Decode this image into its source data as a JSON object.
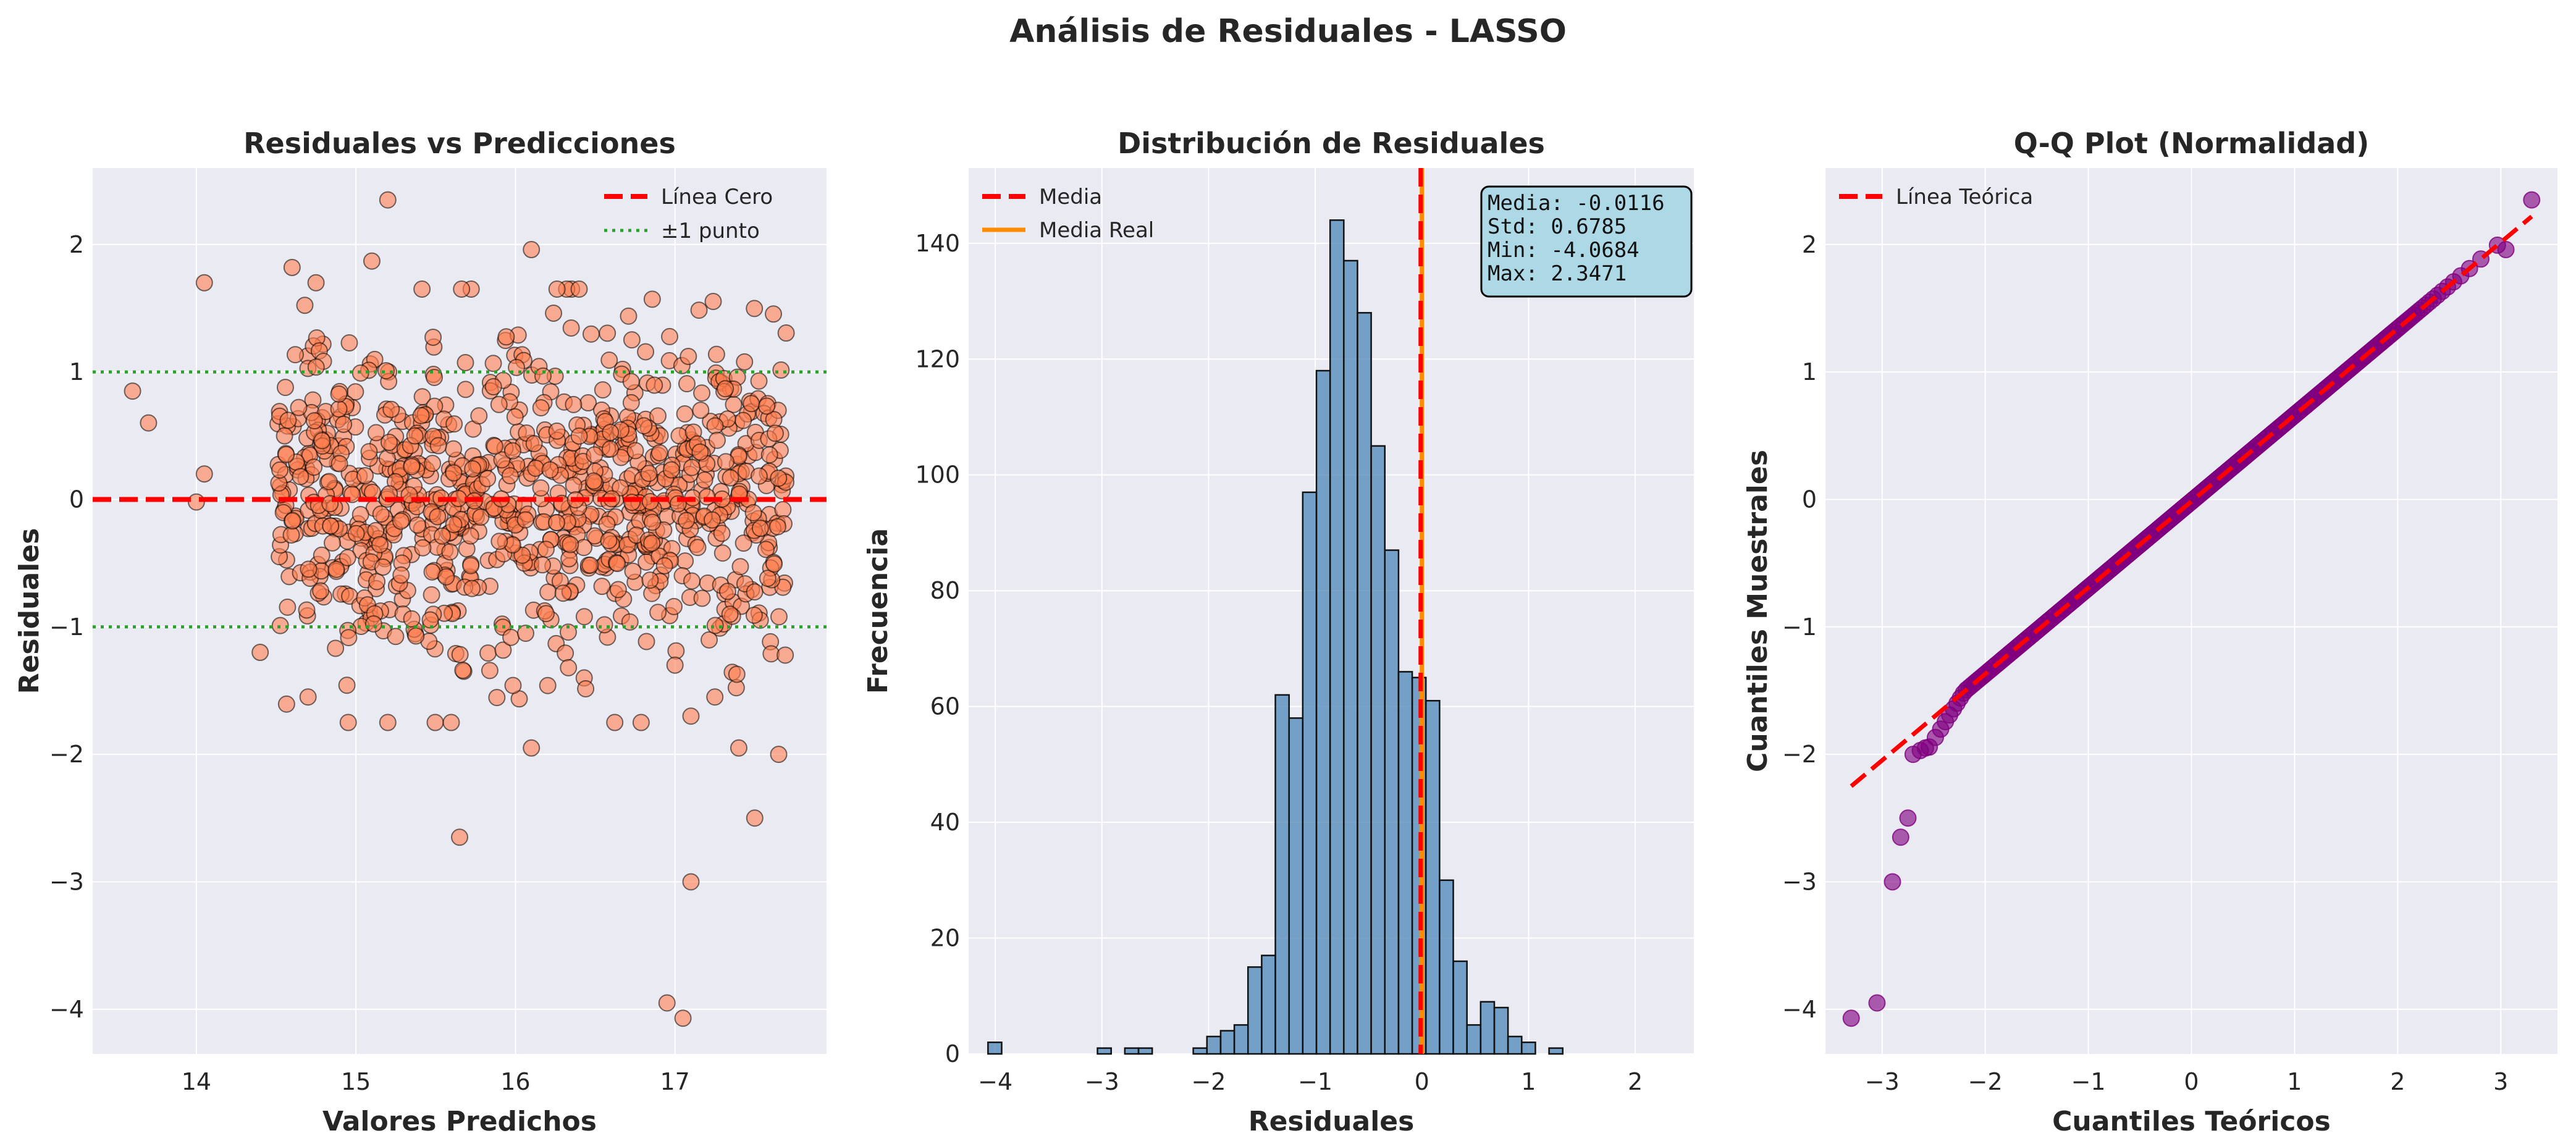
{
  "figure": {
    "title": "Análisis de Residuales - LASSO",
    "colors": {
      "plot_bg": "#eaeaf2",
      "grid": "#ffffff"
    }
  },
  "chart_data": [
    {
      "type": "scatter",
      "title": "Residuales vs Predicciones",
      "xlabel": "Valores Predichos",
      "ylabel": "Residuales",
      "xlim": [
        13.35,
        17.95
      ],
      "ylim": [
        -4.35,
        2.6
      ],
      "xticks": [
        14,
        15,
        16,
        17
      ],
      "yticks": [
        -4,
        -3,
        -2,
        -1,
        0,
        1,
        2
      ],
      "grid": true,
      "legend_position": "top-right",
      "reference_lines": [
        {
          "label": "Línea Cero",
          "y": 0,
          "color": "#ff0000",
          "style": "dashed"
        },
        {
          "label": "±1 punto",
          "y": [
            1,
            -1
          ],
          "color": "#2ca02c",
          "style": "dotted"
        }
      ],
      "point_color": "#ff7f50",
      "n_points": 1000,
      "notable_points": [
        {
          "x": 13.6,
          "y": 0.85
        },
        {
          "x": 13.7,
          "y": 0.6
        },
        {
          "x": 14.05,
          "y": 1.7
        },
        {
          "x": 14.0,
          "y": -0.02
        },
        {
          "x": 14.05,
          "y": 0.2
        },
        {
          "x": 15.2,
          "y": 2.35
        },
        {
          "x": 15.1,
          "y": 1.87
        },
        {
          "x": 16.1,
          "y": 1.96
        },
        {
          "x": 15.65,
          "y": -2.65
        },
        {
          "x": 16.1,
          "y": -1.95
        },
        {
          "x": 16.95,
          "y": -3.95
        },
        {
          "x": 17.05,
          "y": -4.07
        },
        {
          "x": 17.1,
          "y": -3.0
        },
        {
          "x": 17.5,
          "y": -2.5
        },
        {
          "x": 17.65,
          "y": -2.0
        },
        {
          "x": 17.4,
          "y": -1.95
        },
        {
          "x": 17.25,
          "y": -1.55
        },
        {
          "x": 17.1,
          "y": -1.7
        },
        {
          "x": 17.0,
          "y": -1.3
        },
        {
          "x": 14.4,
          "y": -1.2
        },
        {
          "x": 14.7,
          "y": -1.55
        },
        {
          "x": 15.2,
          "y": -1.75
        },
        {
          "x": 14.6,
          "y": 1.82
        },
        {
          "x": 14.75,
          "y": 1.7
        }
      ]
    },
    {
      "type": "bar",
      "subtype": "histogram",
      "title": "Distribución de Residuales",
      "xlabel": "Residuales",
      "ylabel": "Frecuencia",
      "xlim": [
        -4.25,
        2.55
      ],
      "ylim": [
        0,
        153
      ],
      "xticks": [
        -4,
        -3,
        -2,
        -1,
        0,
        1,
        2
      ],
      "yticks": [
        0,
        20,
        40,
        60,
        80,
        100,
        120,
        140
      ],
      "grid": true,
      "legend_position": "top-left",
      "bar_color": "#4682b4",
      "bin_start": -4.0684,
      "bin_width": 0.12831,
      "counts": [
        2,
        0,
        0,
        0,
        0,
        0,
        0,
        0,
        1,
        0,
        1,
        1,
        0,
        0,
        0,
        1,
        3,
        4,
        5,
        15,
        17,
        62,
        58,
        97,
        118,
        144,
        137,
        128,
        105,
        87,
        66,
        65,
        61,
        30,
        16,
        5,
        9,
        8,
        3,
        2,
        0,
        1
      ],
      "mean_lines": [
        {
          "label": "Media",
          "x": -0.0116,
          "color": "#ff0000",
          "style": "dashed"
        },
        {
          "label": "Media Real",
          "x": 0.0,
          "color": "#ff8c00",
          "style": "solid"
        }
      ],
      "stats_text": [
        "Media: -0.0116",
        "Std: 0.6785",
        "Min: -4.0684",
        "Max: 2.3471"
      ],
      "stats_box_color": "#add8e6"
    },
    {
      "type": "scatter",
      "title": "Q-Q Plot (Normalidad)",
      "xlabel": "Cuantiles Teóricos",
      "ylabel": "Cuantiles Muestrales",
      "xlim": [
        -3.55,
        3.55
      ],
      "ylim": [
        -4.35,
        2.6
      ],
      "xticks": [
        -3,
        -2,
        -1,
        0,
        1,
        2,
        3
      ],
      "yticks": [
        -4,
        -3,
        -2,
        -1,
        0,
        1,
        2
      ],
      "grid": true,
      "legend_position": "top-left",
      "reference_line": {
        "label": "Línea Teórica",
        "x": [
          -3.3,
          3.3
        ],
        "y": [
          -2.25,
          2.22
        ],
        "color": "#ff0000",
        "style": "dashed"
      },
      "point_color": "#800080",
      "n_points": 1000,
      "tail_points": [
        {
          "x": -3.3,
          "y": -4.07
        },
        {
          "x": -3.05,
          "y": -3.95
        },
        {
          "x": -2.9,
          "y": -3.0
        },
        {
          "x": -2.82,
          "y": -2.65
        },
        {
          "x": -2.75,
          "y": -2.5
        },
        {
          "x": -2.7,
          "y": -2.0
        },
        {
          "x": -2.63,
          "y": -1.97
        },
        {
          "x": -2.58,
          "y": -1.95
        },
        {
          "x": 3.05,
          "y": 1.96
        },
        {
          "x": 3.3,
          "y": 2.35
        }
      ]
    }
  ]
}
